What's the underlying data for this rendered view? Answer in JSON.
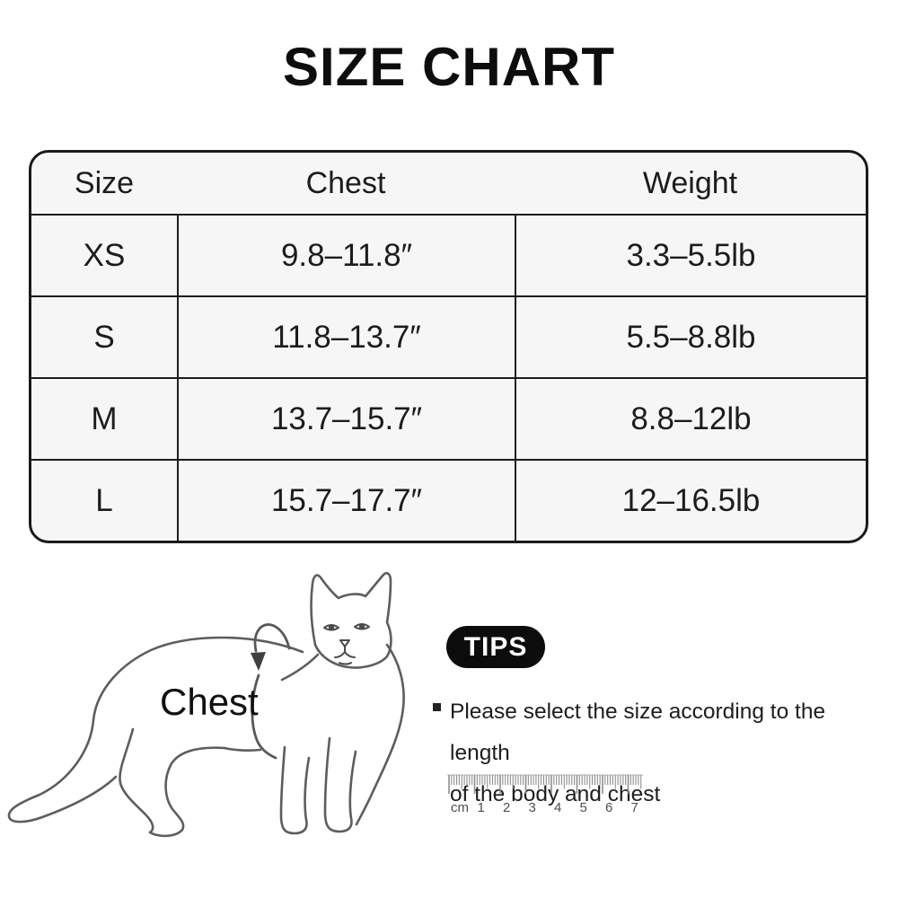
{
  "title": "SIZE CHART",
  "chart_data": {
    "type": "table",
    "title": "SIZE CHART",
    "columns": [
      "Size",
      "Chest",
      "Weight"
    ],
    "rows": [
      [
        "XS",
        "9.8–11.8″",
        "3.3–5.5lb"
      ],
      [
        "S",
        "11.8–13.7″",
        "5.5–8.8lb"
      ],
      [
        "M",
        "13.7–15.7″",
        "8.8–12lb"
      ],
      [
        "L",
        "15.7–17.7″",
        "12–16.5lb"
      ]
    ],
    "style": {
      "table_background": "#f6f6f6",
      "border_color": "#1a1a1a",
      "text_color": "#1c1c1c"
    }
  },
  "diagram": {
    "chest_label": "Chest",
    "line_color": "#5d5d5d",
    "band_color": "#585858",
    "arrow_color": "#3f3f3f"
  },
  "tips": {
    "badge_label": "TIPS",
    "badge_bg": "#0c0c0c",
    "badge_text_color": "#ffffff",
    "lines": [
      "Please select the size according to the length",
      "of the body and chest"
    ]
  },
  "ruler": {
    "unit_label": "cm",
    "numbers": [
      "1",
      "2",
      "3",
      "4",
      "5",
      "6",
      "7"
    ],
    "tick_color": "#8f8f8f",
    "number_color": "#4e4e4e"
  }
}
